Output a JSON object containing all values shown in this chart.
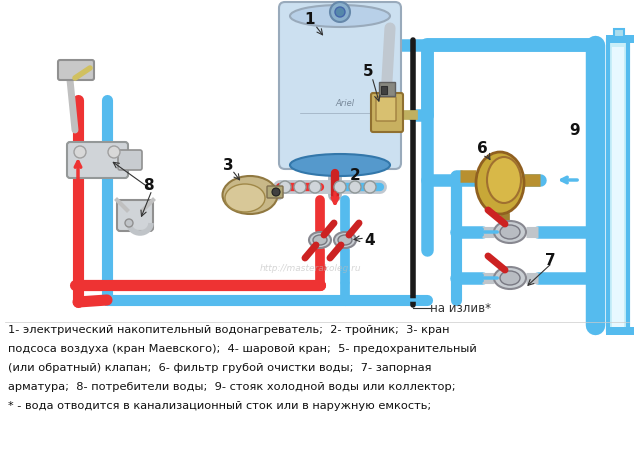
{
  "bg_color": "#ffffff",
  "fig_width": 6.34,
  "fig_height": 4.61,
  "dpi": 100,
  "cold_water_color": "#55bbee",
  "hot_water_color": "#ee3333",
  "legend_lines": [
    "1- электрический накопительный водонагреватель;  2- тройник;  3- кран",
    "подсоса воздуха (кран Маевского);  4- шаровой кран;  5- предохранительный",
    "(или обратный) клапан;  6- фильтр грубой очистки воды;  7- запорная",
    "арматура;  8- потребители воды;  9- стояк холодной воды или коллектор;",
    "* - вода отводится в канализационный сток или в наружную емкость;"
  ],
  "label_fontsize": 8.2,
  "label_color": "#111111",
  "number_color": "#111111",
  "note_text": "на излив*",
  "watermark": "http://masterakoleg.ru"
}
